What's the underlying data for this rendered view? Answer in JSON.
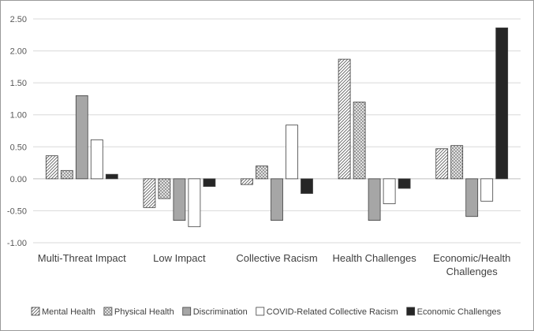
{
  "chart_data": {
    "type": "bar",
    "title": "",
    "xlabel": "",
    "ylabel": "",
    "ylim": [
      -1.0,
      2.5
    ],
    "yticks": [
      "2.50",
      "2.00",
      "1.50",
      "1.00",
      "0.50",
      "0.00",
      "-0.50",
      "-1.00"
    ],
    "ytick_values": [
      2.5,
      2.0,
      1.5,
      1.0,
      0.5,
      0.0,
      -0.5,
      -1.0
    ],
    "grid": true,
    "legend_position": "bottom",
    "categories": [
      [
        "Multi-Threat Impact"
      ],
      [
        "Low Impact"
      ],
      [
        "Collective Racism"
      ],
      [
        "Health Challenges"
      ],
      [
        "Economic/Health",
        "Challenges"
      ]
    ],
    "series": [
      {
        "name": "Mental Health",
        "pattern": "diagonal",
        "values": [
          0.36,
          -0.45,
          -0.09,
          1.87,
          0.47
        ]
      },
      {
        "name": "Physical Health",
        "pattern": "crosshatch",
        "values": [
          0.13,
          -0.31,
          0.2,
          1.2,
          0.52
        ]
      },
      {
        "name": "Discrimination",
        "pattern": "gray",
        "values": [
          1.3,
          -0.65,
          -0.65,
          -0.65,
          -0.59
        ]
      },
      {
        "name": "COVID-Related Collective Racism",
        "pattern": "white",
        "values": [
          0.61,
          -0.75,
          0.84,
          -0.39,
          -0.35
        ]
      },
      {
        "name": "Economic Challenges",
        "pattern": "black",
        "values": [
          0.07,
          -0.12,
          -0.23,
          -0.15,
          2.36
        ]
      }
    ],
    "colors": {
      "grid": "#d9d9d9",
      "axis": "#bfbfbf",
      "bar_stroke": "#404040",
      "gray_fill": "#a6a6a6",
      "black_fill": "#262626"
    }
  }
}
